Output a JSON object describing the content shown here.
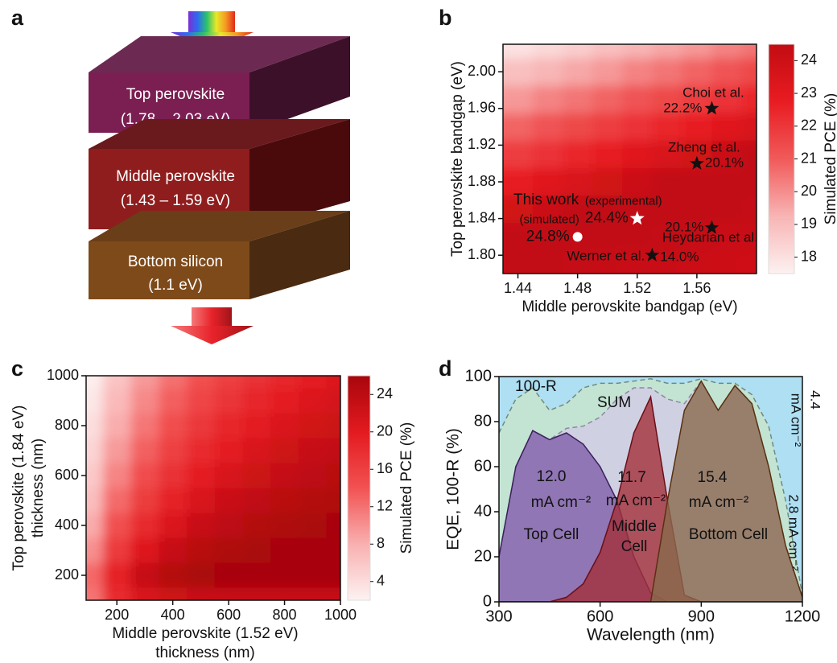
{
  "diagram": {
    "label": "a",
    "layers": [
      {
        "name": "Top perovskite",
        "range": "(1.78 – 2.03 eV)"
      },
      {
        "name": "Middle perovskite",
        "range": "(1.43 – 1.59 eV)"
      },
      {
        "name": "Bottom silicon",
        "range": "(1.1 eV)"
      }
    ]
  },
  "chart_data": [
    {
      "label": "b",
      "type": "contour",
      "xlabel": "Middle perovskite bandgap (eV)",
      "ylabel": "Top perovskite bandgap (eV)",
      "colorbar_label": "Simulated PCE (%)",
      "x": [
        1.44,
        1.46,
        1.48,
        1.5,
        1.52,
        1.54,
        1.56,
        1.58,
        1.6
      ],
      "y": [
        2.03,
        2.0,
        1.97,
        1.94,
        1.91,
        1.88,
        1.85,
        1.82,
        1.79
      ],
      "z": [
        [
          17.9,
          18.2,
          18.5,
          18.9,
          19.2,
          19.5,
          19.8,
          20.2,
          20.5
        ],
        [
          18.9,
          19.2,
          19.5,
          19.8,
          20.2,
          20.5,
          20.8,
          21.2,
          21.5
        ],
        [
          19.8,
          20.2,
          20.5,
          20.8,
          21.2,
          21.5,
          21.8,
          22.1,
          22.5
        ],
        [
          20.8,
          21.2,
          21.5,
          21.8,
          22.1,
          22.5,
          22.8,
          23.1,
          23.5
        ],
        [
          21.8,
          22.1,
          22.5,
          22.8,
          23.1,
          23.5,
          23.8,
          24.1,
          24.5
        ],
        [
          22.8,
          23.1,
          23.5,
          23.8,
          24.1,
          24.5,
          24.8,
          24.7,
          24.6
        ],
        [
          23.8,
          24.1,
          24.5,
          24.8,
          24.7,
          24.6,
          24.6,
          24.5,
          24.4
        ],
        [
          24.8,
          24.7,
          24.6,
          24.6,
          24.5,
          24.4,
          24.3,
          24.2,
          24.2
        ],
        [
          24.6,
          24.5,
          24.4,
          24.3,
          24.2,
          24.2,
          24.1,
          24.0,
          23.9
        ]
      ],
      "xlim": [
        1.43,
        1.6
      ],
      "ylim": [
        1.78,
        2.03
      ],
      "xticks": [
        1.44,
        1.48,
        1.52,
        1.56
      ],
      "yticks": [
        {
          "value": 1.8,
          "label": "1.80"
        },
        1.84,
        1.88,
        1.92,
        1.96,
        {
          "value": 2.0,
          "label": "2.00"
        }
      ],
      "clim": [
        17.5,
        24.5
      ],
      "cticks": [
        18,
        19,
        20,
        21,
        22,
        23,
        24
      ],
      "colormap": [
        "#fdf1f1",
        "#f8b4b4",
        "#f15a5a",
        "#e81c22",
        "#c20c12"
      ],
      "markers": [
        {
          "name": "Choi et al.",
          "x": 1.57,
          "y": 1.96,
          "pce": "22.2%",
          "shape": "star",
          "color": "#111111"
        },
        {
          "name": "Zheng et al.",
          "x": 1.56,
          "y": 1.9,
          "pce": "20.1%",
          "shape": "star",
          "color": "#111111"
        },
        {
          "name": "Heydarian et al.",
          "x": 1.57,
          "y": 1.83,
          "pce": "20.1%",
          "shape": "star",
          "color": "#111111"
        },
        {
          "name": "Werner et al.",
          "x": 1.53,
          "y": 1.8,
          "pce": "14.0%",
          "shape": "star",
          "color": "#111111"
        },
        {
          "name": "(experimental)",
          "x": 1.52,
          "y": 1.84,
          "pce": "24.4%",
          "shape": "star",
          "color": "#ffffff"
        },
        {
          "name": "(simulated)",
          "x": 1.48,
          "y": 1.82,
          "pce": "24.8%",
          "shape": "circle",
          "color": "#ffffff"
        }
      ],
      "annotations": [
        "This work"
      ]
    },
    {
      "label": "c",
      "type": "contour",
      "xlabel": [
        "Middle perovskite (1.52 eV)",
        "thickness (nm)"
      ],
      "ylabel": [
        "Top perovskite (1.84 eV)",
        "thickness (nm)"
      ],
      "colorbar_label": "Simulated PCE (%)",
      "x": [
        100,
        200,
        300,
        400,
        500,
        600,
        700,
        800,
        900,
        1000
      ],
      "y": [
        1000,
        900,
        800,
        700,
        600,
        500,
        400,
        300,
        200,
        100
      ],
      "z": [
        [
          2.3,
          6.2,
          9.4,
          12.0,
          14.2,
          16.0,
          17.5,
          18.7,
          19.8,
          20.6
        ],
        [
          3.0,
          7.1,
          10.5,
          13.2,
          15.4,
          17.2,
          18.7,
          19.8,
          20.8,
          21.6
        ],
        [
          3.8,
          8.2,
          11.7,
          14.5,
          16.7,
          18.5,
          19.9,
          21.0,
          21.8,
          22.5
        ],
        [
          4.7,
          9.4,
          13.1,
          15.9,
          18.1,
          19.8,
          21.1,
          22.1,
          22.9,
          23.5
        ],
        [
          5.7,
          10.8,
          14.6,
          17.5,
          19.6,
          21.2,
          22.3,
          23.2,
          23.9,
          24.4
        ],
        [
          6.8,
          12.4,
          16.3,
          19.1,
          21.1,
          22.6,
          23.6,
          24.3,
          24.8,
          25.2
        ],
        [
          8.3,
          14.3,
          18.3,
          20.9,
          22.8,
          23.9,
          24.8,
          25.3,
          25.7,
          25.9
        ],
        [
          10.1,
          16.5,
          20.5,
          22.9,
          24.4,
          25.3,
          25.8,
          26.2,
          26.4,
          26.5
        ],
        [
          12.6,
          19.3,
          22.9,
          24.8,
          25.8,
          26.4,
          26.7,
          26.8,
          26.9,
          26.9
        ],
        [
          11.8,
          18.4,
          21.1,
          22.2,
          22.7,
          22.9,
          23.0,
          23.0,
          23.0,
          23.0
        ]
      ],
      "xlim": [
        90,
        1000
      ],
      "ylim": [
        100,
        1000
      ],
      "xticks": [
        200,
        400,
        600,
        800,
        1000
      ],
      "yticks": [
        200,
        400,
        600,
        800,
        1000
      ],
      "clim": [
        2,
        26
      ],
      "cticks": [
        4,
        8,
        12,
        16,
        20,
        24
      ],
      "colormap": [
        "#fdf2f2",
        "#f9b0b0",
        "#f25252",
        "#e31a1f",
        "#a8060c"
      ]
    },
    {
      "label": "d",
      "type": "area",
      "xlabel": "Wavelength (nm)",
      "ylabel": "EQE, 100-R (%)",
      "background": "#aedff3",
      "x": [
        300,
        350,
        400,
        450,
        500,
        550,
        600,
        650,
        700,
        750,
        800,
        850,
        900,
        950,
        1000,
        1050,
        1100,
        1150,
        1200
      ],
      "series": [
        {
          "name": "100-R",
          "fill": "#c4e4d3",
          "color": "#6f8a7c",
          "dashed": true,
          "values": [
            75,
            90,
            95,
            85,
            88,
            95,
            97,
            97,
            98,
            99,
            97,
            97,
            99,
            97,
            97,
            92,
            78,
            45,
            3
          ]
        },
        {
          "name": "SUM",
          "fill": "#cfd1e3",
          "color": "#8a8a9a",
          "dashed": true,
          "values": [
            20,
            60,
            76,
            72,
            77,
            78,
            82,
            90,
            95,
            95,
            90,
            88,
            98,
            85,
            96,
            88,
            60,
            25,
            2
          ]
        },
        {
          "name": "Top Cell",
          "fill": "#7f5fa8",
          "color": "#3c1f5c",
          "dashed": false,
          "current": [
            "12.0",
            "mA cm⁻²"
          ],
          "values": [
            20,
            60,
            76,
            72,
            75,
            70,
            60,
            45,
            20,
            4,
            0,
            0,
            0,
            0,
            0,
            0,
            0,
            0,
            0
          ]
        },
        {
          "name": "Middle Cell",
          "fill": "#a3303a",
          "color": "#6a0f18",
          "dashed": false,
          "current": [
            "11.7",
            "mA cm⁻²"
          ],
          "values": [
            0,
            0,
            0,
            0,
            2,
            8,
            22,
            45,
            75,
            91,
            45,
            3,
            0,
            0,
            0,
            0,
            0,
            0,
            0
          ]
        },
        {
          "name": "Bottom Cell",
          "fill": "#8a6a4e",
          "color": "#5a3010",
          "dashed": false,
          "current": [
            "15.4",
            "mA cm⁻²"
          ],
          "values": [
            0,
            0,
            0,
            0,
            0,
            0,
            0,
            0,
            0,
            0,
            45,
            85,
            98,
            85,
            96,
            88,
            60,
            25,
            2
          ]
        }
      ],
      "annotations": [
        [
          "4.4",
          "mA cm⁻²"
        ],
        [
          "2.8 mA cm⁻²"
        ]
      ],
      "xlim": [
        300,
        1200
      ],
      "ylim": [
        0,
        100
      ],
      "xticks": [
        300,
        600,
        900,
        1200
      ],
      "yticks": [
        0,
        20,
        40,
        60,
        80,
        100
      ]
    }
  ]
}
